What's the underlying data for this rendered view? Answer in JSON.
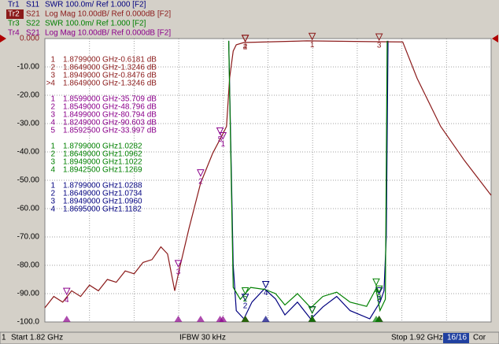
{
  "chart_data": {
    "type": "line",
    "xlim": [
      1.82,
      1.92
    ],
    "xticks": [
      1.82,
      1.83,
      1.84,
      1.85,
      1.86,
      1.87,
      1.88,
      1.89,
      1.9,
      1.91,
      1.92
    ],
    "ylim": [
      -100,
      0
    ],
    "yticks": [
      {
        "value": 0,
        "label": "0.000"
      },
      {
        "value": -10,
        "label": "-10.00"
      },
      {
        "value": -20,
        "label": "-20.00"
      },
      {
        "value": -30,
        "label": "-30.00"
      },
      {
        "value": -40,
        "label": "-40.00"
      },
      {
        "value": -50,
        "label": "-50.00"
      },
      {
        "value": -60,
        "label": "-60.00"
      },
      {
        "value": -70,
        "label": "-70.00"
      },
      {
        "value": -80,
        "label": "-80.00"
      },
      {
        "value": -90,
        "label": "-90.00"
      },
      {
        "value": -100,
        "label": "-100.0"
      }
    ],
    "grid": true,
    "series": [
      {
        "name": "Tr1",
        "param": "S11",
        "format": "SWR 100.0m/ Ref 1.000 [F2]",
        "color": "#00007f",
        "x": [
          1.8612,
          1.8622,
          1.8629,
          1.8646,
          1.8664,
          1.8692,
          1.8717,
          1.8738,
          1.8766,
          1.8796,
          1.8823,
          1.8854,
          1.8884,
          1.8928,
          1.8951,
          1.896,
          1.8965,
          1.8969
        ],
        "values": [
          -0.8,
          -80,
          -96,
          -98.9,
          -93,
          -88.3,
          -91.9,
          -97.5,
          -93,
          -99,
          -94.7,
          -91,
          -96,
          -98.9,
          -93,
          -89,
          -70,
          -0.8
        ],
        "markers": {
          "x": [
            1.8799,
            1.8649,
            1.8949,
            1.8695
          ],
          "values": [
            -97.1,
            -92.7,
            -90.4,
            -88.2
          ],
          "labels": [
            "1",
            "2",
            "3",
            "4"
          ]
        }
      },
      {
        "name": "Tr2",
        "param": "S21",
        "format": "Log Mag 10.00dB/ Ref 0.000dB [F2]",
        "color": "#8b1a1a",
        "x": [
          1.82,
          1.822,
          1.824,
          1.826,
          1.828,
          1.83,
          1.832,
          1.834,
          1.836,
          1.838,
          1.84,
          1.842,
          1.844,
          1.846,
          1.8475,
          1.8491,
          1.8502,
          1.8523,
          1.8549,
          1.8576,
          1.8599,
          1.8607,
          1.8614,
          1.8622,
          1.8629,
          1.8646,
          1.8787,
          1.8946,
          1.9002,
          1.9034,
          1.9087,
          1.914,
          1.92
        ],
        "values": [
          -95,
          -91,
          -93,
          -89,
          -91,
          -87,
          -89,
          -85,
          -86,
          -82,
          -83,
          -79,
          -78,
          -73.5,
          -76,
          -89,
          -81,
          -67,
          -51,
          -40.5,
          -33.6,
          -31,
          -14,
          -4.4,
          -2.2,
          -1.4,
          -0.8,
          -1.1,
          -1.2,
          -14,
          -31,
          -43,
          -55.3
        ],
        "markers": {
          "x": [
            1.8799,
            1.8649,
            1.8949,
            1.8649
          ],
          "values": [
            -0.6181,
            -1.3246,
            -0.8476,
            -1.3246
          ],
          "labels": [
            "1",
            "2",
            "3",
            "4"
          ]
        }
      },
      {
        "name": "Tr3",
        "param": "S22",
        "format": "SWR 100.0m/ Ref 1.000 [F2]",
        "color": "#008000",
        "x": [
          1.8612,
          1.8622,
          1.8638,
          1.8661,
          1.8692,
          1.8717,
          1.8738,
          1.8766,
          1.8796,
          1.8823,
          1.8854,
          1.8884,
          1.8921,
          1.8942,
          1.8951,
          1.8963,
          1.8967
        ],
        "values": [
          -0.8,
          -87.8,
          -92,
          -87.8,
          -88.5,
          -90,
          -94,
          -90,
          -95,
          -91,
          -89.5,
          -93,
          -94.5,
          -88.3,
          -96,
          -92,
          -0.8
        ],
        "markers": {
          "x": [
            1.8799,
            1.8649,
            1.8949,
            1.89425
          ],
          "values": [
            -97.2,
            -90.4,
            -89.8,
            -87.3
          ],
          "labels": [
            "1",
            "2",
            "3",
            "4"
          ]
        }
      },
      {
        "name": "Tr4",
        "param": "S21",
        "format": "Log Mag 10.00dB/ Ref 0.000dB [F2]",
        "color": "#8b008b",
        "markers": {
          "x": [
            1.8599,
            1.8549,
            1.8499,
            1.8249,
            1.85925
          ],
          "values": [
            -35.709,
            -48.796,
            -80.794,
            -90.603,
            -33.997
          ],
          "labels": [
            "1",
            "2",
            "3",
            "4",
            "5"
          ]
        }
      }
    ],
    "marker_tables": [
      {
        "color": "#8b1a1a",
        "rows": [
          [
            "1",
            "1.8799000 GHz",
            "-0.6181 dB"
          ],
          [
            "2",
            "1.8649000 GHz",
            "-1.3246 dB"
          ],
          [
            "3",
            "1.8949000 GHz",
            "-0.8476 dB"
          ],
          [
            ">4",
            "1.8649000 GHz",
            "-1.3246 dB"
          ]
        ]
      },
      {
        "color": "#8b008b",
        "rows": [
          [
            "1",
            "1.8599000 GHz",
            "-35.709 dB"
          ],
          [
            "2",
            "1.8549000 GHz",
            "-48.796 dB"
          ],
          [
            "3",
            "1.8499000 GHz",
            "-80.794 dB"
          ],
          [
            "4",
            "1.8249000 GHz",
            "-90.603 dB"
          ],
          [
            "5",
            "1.8592500 GHz",
            "-33.997 dB"
          ]
        ]
      },
      {
        "color": "#008000",
        "rows": [
          [
            "1",
            "1.8799000 GHz",
            "1.0282"
          ],
          [
            "2",
            "1.8649000 GHz",
            "1.0962"
          ],
          [
            "3",
            "1.8949000 GHz",
            "1.1022"
          ],
          [
            "4",
            "1.8942500 GHz",
            "1.1269"
          ]
        ]
      },
      {
        "color": "#00007f",
        "rows": [
          [
            "1",
            "1.8799000 GHz",
            "1.0288"
          ],
          [
            "2",
            "1.8649000 GHz",
            "1.0734"
          ],
          [
            "3",
            "1.8949000 GHz",
            "1.0960"
          ],
          [
            "4",
            "1.8695000 GHz",
            "1.1182"
          ]
        ]
      }
    ],
    "footer": {
      "channel": "1",
      "start": "Start 1.82 GHz",
      "ifbw": "IFBW 30 kHz",
      "stop": "Stop 1.92 GHz",
      "count": "16/16",
      "status": "Cor"
    }
  }
}
